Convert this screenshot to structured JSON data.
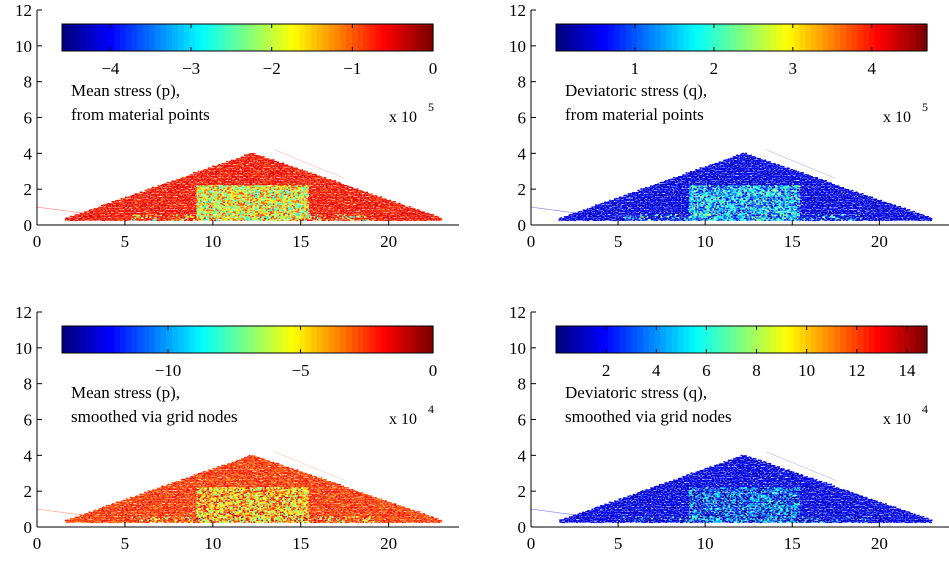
{
  "chart_data": [
    {
      "type": "scatter",
      "xlim": [
        0,
        24
      ],
      "ylim": [
        0,
        12
      ],
      "xticks": [
        0,
        5,
        10,
        15,
        20
      ],
      "yticks": [
        0,
        2,
        4,
        6,
        8,
        10,
        12
      ],
      "colorbar": {
        "ticks": [
          -4,
          -3,
          -2,
          -1,
          0
        ],
        "clim": [
          -4.6,
          0
        ],
        "multiplier": "x 10",
        "exponent": "5"
      },
      "annotation": [
        "Mean stress (p),",
        "from material points"
      ],
      "mean_tone": 0.86,
      "core_tone": 0.62
    },
    {
      "type": "scatter",
      "xlim": [
        0,
        24
      ],
      "ylim": [
        0,
        12
      ],
      "xticks": [
        0,
        5,
        10,
        15,
        20
      ],
      "yticks": [
        0,
        2,
        4,
        6,
        8,
        10,
        12
      ],
      "colorbar": {
        "ticks": [
          1,
          2,
          3,
          4
        ],
        "clim": [
          0,
          4.7
        ],
        "multiplier": "x 10",
        "exponent": "5"
      },
      "annotation": [
        "Deviatoric stress (q),",
        "from material points"
      ],
      "mean_tone": 0.1,
      "core_tone": 0.3
    },
    {
      "type": "scatter",
      "xlim": [
        0,
        24
      ],
      "ylim": [
        0,
        12
      ],
      "xticks": [
        0,
        5,
        10,
        15,
        20
      ],
      "yticks": [
        0,
        2,
        4,
        6,
        8,
        10,
        12
      ],
      "colorbar": {
        "ticks": [
          -10,
          -5,
          0
        ],
        "clim": [
          -14,
          0
        ],
        "multiplier": "x 10",
        "exponent": "4"
      },
      "annotation": [
        "Mean stress (p),",
        " smoothed via grid nodes"
      ],
      "mean_tone": 0.82,
      "core_tone": 0.7
    },
    {
      "type": "scatter",
      "xlim": [
        0,
        24
      ],
      "ylim": [
        0,
        12
      ],
      "xticks": [
        0,
        5,
        10,
        15,
        20
      ],
      "yticks": [
        0,
        2,
        4,
        6,
        8,
        10,
        12
      ],
      "colorbar": {
        "ticks": [
          2,
          4,
          6,
          8,
          10,
          12,
          14
        ],
        "clim": [
          0,
          14.8
        ],
        "multiplier": "x 10",
        "exponent": "4"
      },
      "annotation": [
        "Deviatoric stress (q),",
        " smoothed via grid nodes"
      ],
      "mean_tone": 0.1,
      "core_tone": 0.18
    }
  ]
}
